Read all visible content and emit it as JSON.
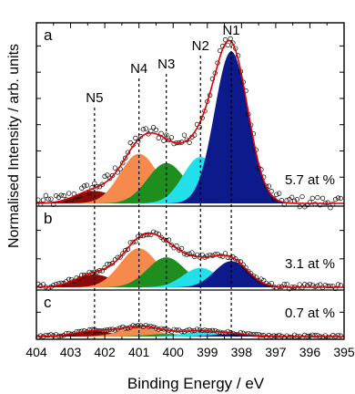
{
  "chart_data": {
    "type": "line",
    "xlabel": "Binding Energy / eV",
    "ylabel": "Normalised Intensity / arb. units",
    "xlim": [
      404,
      395
    ],
    "x_reversed": true,
    "xticks": [
      404,
      403,
      402,
      401,
      400,
      399,
      398,
      397,
      396,
      395
    ],
    "grid": false,
    "component_labels": [
      {
        "label": "N5",
        "x": 402.3
      },
      {
        "label": "N4",
        "x": 401.0
      },
      {
        "label": "N3",
        "x": 400.2
      },
      {
        "label": "N2",
        "x": 399.2
      },
      {
        "label": "N1",
        "x": 398.3
      }
    ],
    "component_colors": {
      "N5": "#8b0a0a",
      "N4": "#f58a4c",
      "N3": "#1e8f1e",
      "N2": "#22e0ea",
      "N1": "#0c1a8c"
    },
    "envelope_color": "#e00000",
    "data_marker": "open-circle",
    "panels": [
      {
        "letter": "a",
        "annotation": "5.7 at %",
        "ylim": [
          0,
          1.1
        ],
        "components": [
          {
            "name": "N5",
            "center": 402.3,
            "amplitude": 0.08,
            "fwhm": 1.3
          },
          {
            "name": "N4",
            "center": 401.0,
            "amplitude": 0.32,
            "fwhm": 1.3
          },
          {
            "name": "N3",
            "center": 400.2,
            "amplitude": 0.26,
            "fwhm": 1.3
          },
          {
            "name": "N2",
            "center": 399.2,
            "amplitude": 0.3,
            "fwhm": 1.2
          },
          {
            "name": "N1",
            "center": 398.3,
            "amplitude": 0.98,
            "fwhm": 1.15
          }
        ]
      },
      {
        "letter": "b",
        "annotation": "3.1 at %",
        "ylim": [
          0,
          0.95
        ],
        "components": [
          {
            "name": "N5",
            "center": 402.3,
            "amplitude": 0.17,
            "fwhm": 1.3
          },
          {
            "name": "N4",
            "center": 401.0,
            "amplitude": 0.52,
            "fwhm": 1.3
          },
          {
            "name": "N3",
            "center": 400.2,
            "amplitude": 0.4,
            "fwhm": 1.3
          },
          {
            "name": "N2",
            "center": 399.2,
            "amplitude": 0.26,
            "fwhm": 1.2
          },
          {
            "name": "N1",
            "center": 398.3,
            "amplitude": 0.35,
            "fwhm": 1.15
          }
        ]
      },
      {
        "letter": "c",
        "annotation": "0.7 at %",
        "ylim": [
          0,
          1.0
        ],
        "components": [
          {
            "name": "N5",
            "center": 402.3,
            "amplitude": 0.15,
            "fwhm": 1.3
          },
          {
            "name": "N4",
            "center": 401.0,
            "amplitude": 0.25,
            "fwhm": 1.3
          },
          {
            "name": "N3",
            "center": 400.2,
            "amplitude": 0.07,
            "fwhm": 1.3
          },
          {
            "name": "N2",
            "center": 399.2,
            "amplitude": 0.13,
            "fwhm": 1.2
          },
          {
            "name": "N1",
            "center": 398.3,
            "amplitude": 0.07,
            "fwhm": 1.15
          }
        ]
      }
    ]
  }
}
